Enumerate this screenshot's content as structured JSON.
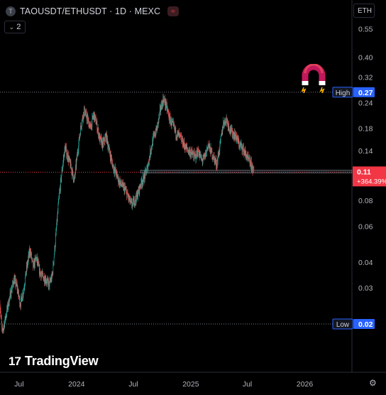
{
  "header": {
    "symbol_icon_text": "T",
    "title": "TAOUSDT/ETHUSDT · 1D · MEXC",
    "exchange_icon": "wave-icon"
  },
  "toolbar": {
    "collapse_count": "2",
    "currency": "ETH"
  },
  "branding": {
    "logo_text": "TradingView",
    "logo_mark": "17"
  },
  "colors": {
    "up": "#26a69a",
    "down": "#ef5350",
    "accent": "#2962ff",
    "price_label": "#f23645",
    "background": "#000000",
    "grid": "#1e222d",
    "text": "#d1d4dc"
  },
  "icons": {
    "magnet": "magnet-icon",
    "settings": "gear-icon"
  },
  "chart_data": {
    "type": "candlestick",
    "y_scale": "log",
    "ylim": [
      0.015,
      0.58
    ],
    "x_range": [
      "2023-05-01",
      "2026-06-01"
    ],
    "y_ticks": [
      "0.55",
      "0.40",
      "0.32",
      "0.24",
      "0.18",
      "0.14",
      "0.08",
      "0.06",
      "0.04",
      "0.03",
      "0.02"
    ],
    "x_ticks": [
      {
        "label": "Jul",
        "date": "2023-07-01"
      },
      {
        "label": "2024",
        "date": "2024-01-01"
      },
      {
        "label": "Jul",
        "date": "2024-07-01"
      },
      {
        "label": "2025",
        "date": "2025-01-01"
      },
      {
        "label": "Jul",
        "date": "2025-07-01"
      },
      {
        "label": "2026",
        "date": "2026-01-01"
      }
    ],
    "high": {
      "label": "High",
      "value": 0.27,
      "value_text": "0.27"
    },
    "low": {
      "label": "Low",
      "value": 0.02,
      "value_text": "0.02"
    },
    "last": {
      "value": 0.11,
      "value_text": "0.11",
      "change_text": "+364.39%"
    },
    "path": [
      [
        "2023-05-01",
        0.025
      ],
      [
        "2023-05-08",
        0.018
      ],
      [
        "2023-05-20",
        0.022
      ],
      [
        "2023-06-01",
        0.027
      ],
      [
        "2023-06-15",
        0.033
      ],
      [
        "2023-06-25",
        0.03
      ],
      [
        "2023-07-05",
        0.025
      ],
      [
        "2023-07-15",
        0.029
      ],
      [
        "2023-07-25",
        0.037
      ],
      [
        "2023-08-05",
        0.046
      ],
      [
        "2023-08-15",
        0.038
      ],
      [
        "2023-08-25",
        0.042
      ],
      [
        "2023-09-05",
        0.036
      ],
      [
        "2023-09-15",
        0.034
      ],
      [
        "2023-09-25",
        0.033
      ],
      [
        "2023-10-05",
        0.031
      ],
      [
        "2023-10-15",
        0.034
      ],
      [
        "2023-10-25",
        0.05
      ],
      [
        "2023-11-05",
        0.08
      ],
      [
        "2023-11-15",
        0.11
      ],
      [
        "2023-11-25",
        0.145
      ],
      [
        "2023-12-05",
        0.13
      ],
      [
        "2023-12-15",
        0.115
      ],
      [
        "2023-12-25",
        0.1
      ],
      [
        "2024-01-05",
        0.14
      ],
      [
        "2024-01-15",
        0.185
      ],
      [
        "2024-01-25",
        0.22
      ],
      [
        "2024-02-05",
        0.2
      ],
      [
        "2024-02-15",
        0.18
      ],
      [
        "2024-02-25",
        0.21
      ],
      [
        "2024-03-05",
        0.19
      ],
      [
        "2024-03-15",
        0.16
      ],
      [
        "2024-03-25",
        0.15
      ],
      [
        "2024-04-05",
        0.165
      ],
      [
        "2024-04-15",
        0.14
      ],
      [
        "2024-04-25",
        0.12
      ],
      [
        "2024-05-05",
        0.11
      ],
      [
        "2024-05-15",
        0.1
      ],
      [
        "2024-05-25",
        0.095
      ],
      [
        "2024-06-05",
        0.09
      ],
      [
        "2024-06-15",
        0.083
      ],
      [
        "2024-06-25",
        0.076
      ],
      [
        "2024-07-05",
        0.08
      ],
      [
        "2024-07-15",
        0.086
      ],
      [
        "2024-07-25",
        0.097
      ],
      [
        "2024-08-05",
        0.104
      ],
      [
        "2024-08-15",
        0.115
      ],
      [
        "2024-08-25",
        0.14
      ],
      [
        "2024-09-05",
        0.165
      ],
      [
        "2024-09-15",
        0.18
      ],
      [
        "2024-09-25",
        0.22
      ],
      [
        "2024-10-05",
        0.25
      ],
      [
        "2024-10-15",
        0.23
      ],
      [
        "2024-10-25",
        0.2
      ],
      [
        "2024-11-05",
        0.185
      ],
      [
        "2024-11-15",
        0.17
      ],
      [
        "2024-11-25",
        0.165
      ],
      [
        "2024-12-05",
        0.155
      ],
      [
        "2024-12-15",
        0.145
      ],
      [
        "2024-12-25",
        0.14
      ],
      [
        "2025-01-05",
        0.135
      ],
      [
        "2025-01-15",
        0.13
      ],
      [
        "2025-01-25",
        0.14
      ],
      [
        "2025-02-05",
        0.125
      ],
      [
        "2025-02-15",
        0.13
      ],
      [
        "2025-02-25",
        0.15
      ],
      [
        "2025-03-05",
        0.14
      ],
      [
        "2025-03-15",
        0.13
      ],
      [
        "2025-03-25",
        0.12
      ],
      [
        "2025-04-05",
        0.15
      ],
      [
        "2025-04-15",
        0.19
      ],
      [
        "2025-04-25",
        0.2
      ],
      [
        "2025-05-05",
        0.18
      ],
      [
        "2025-05-15",
        0.17
      ],
      [
        "2025-05-25",
        0.165
      ],
      [
        "2025-06-05",
        0.15
      ],
      [
        "2025-06-15",
        0.145
      ],
      [
        "2025-06-25",
        0.135
      ],
      [
        "2025-07-05",
        0.125
      ],
      [
        "2025-07-15",
        0.118
      ],
      [
        "2025-07-22",
        0.11
      ]
    ]
  }
}
